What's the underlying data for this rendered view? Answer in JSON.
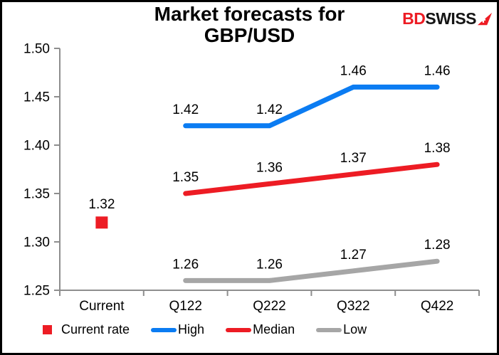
{
  "page": {
    "background_color": "#ffffff",
    "border_color": "#000000"
  },
  "header": {
    "title": "Market forecasts for GBP/USD",
    "logo": {
      "prefix": "BD",
      "suffix": "SWISS",
      "prefix_color": "#ed1c24",
      "suffix_color": "#151515",
      "arrow_icon": "red-arrow-pennant-with-swiss-cross"
    }
  },
  "chart_data": {
    "type": "line",
    "title": "Market forecasts for GBP/USD",
    "categories": [
      "Current",
      "Q122",
      "Q222",
      "Q322",
      "Q422"
    ],
    "ylim": [
      1.25,
      1.5
    ],
    "y_ticks": [
      1.5,
      1.45,
      1.4,
      1.35,
      1.3,
      1.25
    ],
    "grid": false,
    "data_labels": true,
    "label_decimals": 2,
    "legend_position": "bottom",
    "axis_color": "#8e8e8e",
    "label_color": "#000000",
    "series": [
      {
        "name": "High",
        "color": "#0b7cf2",
        "values": [
          null,
          1.42,
          1.42,
          1.46,
          1.46
        ]
      },
      {
        "name": "Median",
        "color": "#ed1c24",
        "values": [
          null,
          1.35,
          1.36,
          1.37,
          1.38
        ]
      },
      {
        "name": "Low",
        "color": "#a6a6a6",
        "values": [
          null,
          1.26,
          1.26,
          1.27,
          1.28
        ]
      }
    ],
    "point_series": [
      {
        "name": "Current rate",
        "color": "#ed1c24",
        "marker": "square",
        "values": [
          1.32,
          null,
          null,
          null,
          null
        ]
      }
    ]
  },
  "legend": {
    "items": [
      {
        "label": "Current rate",
        "marker": "square",
        "color": "#ed1c24"
      },
      {
        "label": "High",
        "marker": "line",
        "color": "#0b7cf2"
      },
      {
        "label": "Median",
        "marker": "line",
        "color": "#ed1c24"
      },
      {
        "label": "Low",
        "marker": "line",
        "color": "#a6a6a6"
      }
    ]
  }
}
